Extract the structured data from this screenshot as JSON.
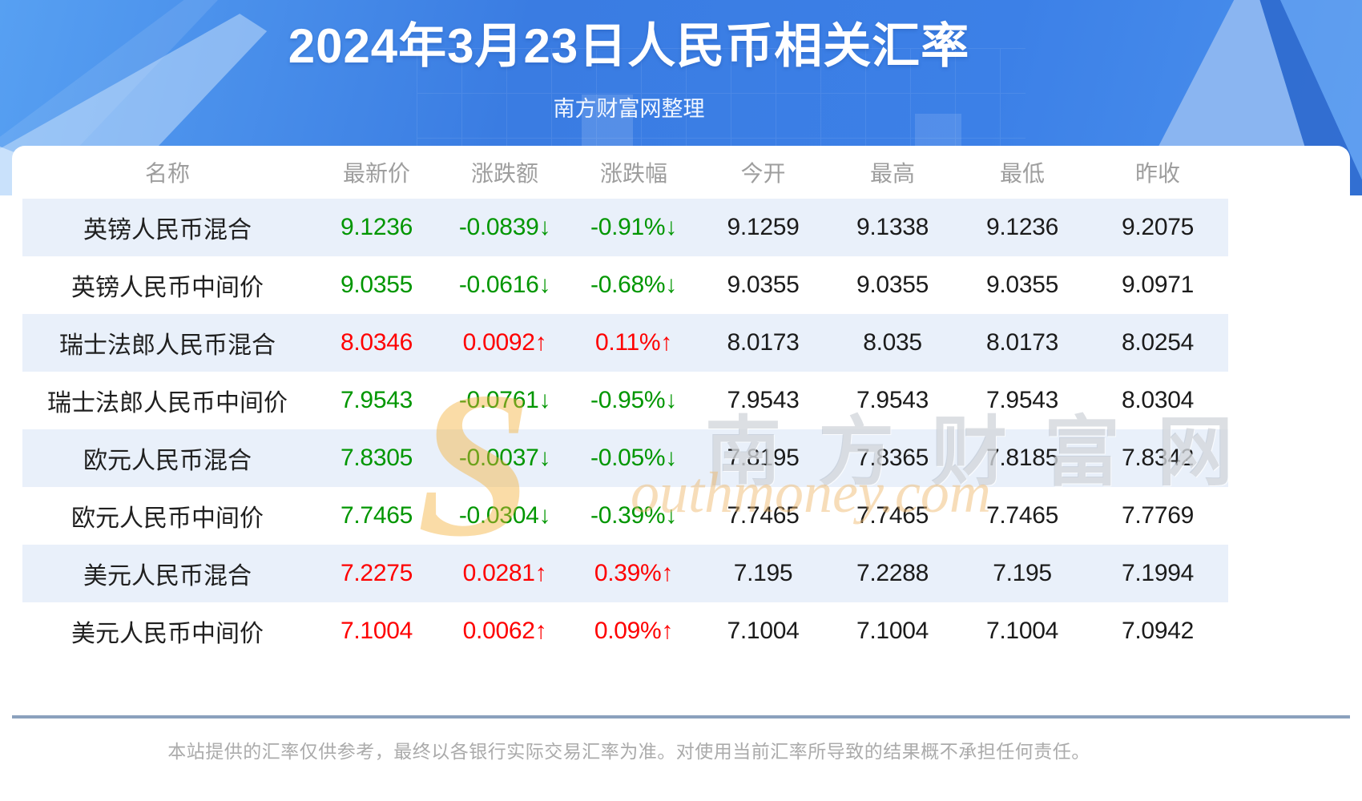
{
  "header": {
    "title": "2024年3月23日人民币相关汇率",
    "subtitle": "南方财富网整理"
  },
  "chart_data": {
    "type": "table",
    "title": "2024年3月23日人民币相关汇率",
    "columns": [
      "名称",
      "最新价",
      "涨跌额",
      "涨跌幅",
      "今开",
      "最高",
      "最低",
      "昨收"
    ],
    "rows": [
      {
        "name": "英镑人民币混合",
        "latest": "9.1236",
        "change": "-0.0839↓",
        "change_pct": "-0.91%↓",
        "open": "9.1259",
        "high": "9.1338",
        "low": "9.1236",
        "prev_close": "9.2075",
        "direction": "down"
      },
      {
        "name": "英镑人民币中间价",
        "latest": "9.0355",
        "change": "-0.0616↓",
        "change_pct": "-0.68%↓",
        "open": "9.0355",
        "high": "9.0355",
        "low": "9.0355",
        "prev_close": "9.0971",
        "direction": "down"
      },
      {
        "name": "瑞士法郎人民币混合",
        "latest": "8.0346",
        "change": "0.0092↑",
        "change_pct": "0.11%↑",
        "open": "8.0173",
        "high": "8.035",
        "low": "8.0173",
        "prev_close": "8.0254",
        "direction": "up"
      },
      {
        "name": "瑞士法郎人民币中间价",
        "latest": "7.9543",
        "change": "-0.0761↓",
        "change_pct": "-0.95%↓",
        "open": "7.9543",
        "high": "7.9543",
        "low": "7.9543",
        "prev_close": "8.0304",
        "direction": "down"
      },
      {
        "name": "欧元人民币混合",
        "latest": "7.8305",
        "change": "-0.0037↓",
        "change_pct": "-0.05%↓",
        "open": "7.8195",
        "high": "7.8365",
        "low": "7.8185",
        "prev_close": "7.8342",
        "direction": "down"
      },
      {
        "name": "欧元人民币中间价",
        "latest": "7.7465",
        "change": "-0.0304↓",
        "change_pct": "-0.39%↓",
        "open": "7.7465",
        "high": "7.7465",
        "low": "7.7465",
        "prev_close": "7.7769",
        "direction": "down"
      },
      {
        "name": "美元人民币混合",
        "latest": "7.2275",
        "change": "0.0281↑",
        "change_pct": "0.39%↑",
        "open": "7.195",
        "high": "7.2288",
        "low": "7.195",
        "prev_close": "7.1994",
        "direction": "up"
      },
      {
        "name": "美元人民币中间价",
        "latest": "7.1004",
        "change": "0.0062↑",
        "change_pct": "0.09%↑",
        "open": "7.1004",
        "high": "7.1004",
        "low": "7.1004",
        "prev_close": "7.0942",
        "direction": "up"
      }
    ]
  },
  "watermark": {
    "s_glyph": "S",
    "brand_cn": "南方财富网",
    "brand_en": "outhmoney.com"
  },
  "footer": {
    "disclaimer": "本站提供的汇率仅供参考，最终以各银行实际交易汇率为准。对使用当前汇率所导致的结果概不承担任何责任。"
  },
  "colors": {
    "up": "#fe0000",
    "down": "#009600",
    "banner_blue": "#3a7ce2",
    "row_stripe": "#e9f0fa",
    "divider": "#8ba1bd",
    "header_text": "#9e9e9e"
  }
}
